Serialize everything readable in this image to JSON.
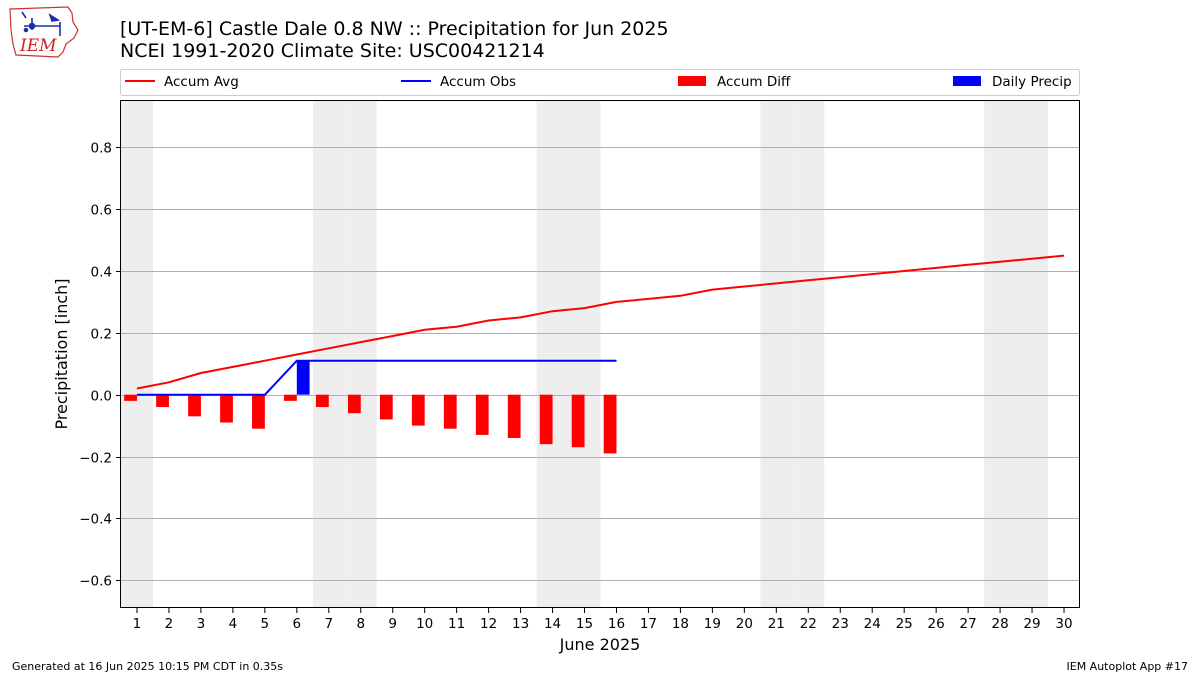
{
  "header": {
    "logo_text": "IEM",
    "title_line1": "[UT-EM-6] Castle Dale 0.8 NW :: Precipitation for Jun 2025",
    "title_line2": "NCEI 1991-2020 Climate Site: USC00421214"
  },
  "footer": {
    "left": "Generated at 16 Jun 2025 10:15 PM CDT in 0.35s",
    "right": "IEM Autoplot App #17"
  },
  "colors": {
    "accum_avg": "#ff0000",
    "accum_obs": "#0000ff",
    "accum_diff": "#ff0000",
    "daily_precip": "#0000ff",
    "weekend_shade": "#eeeeee",
    "grid": "#b0b0b0"
  },
  "chart_data": {
    "type": "line",
    "xlabel": "June 2025",
    "ylabel": "Precipitation [inch]",
    "xlim": [
      0.5,
      30.5
    ],
    "ylim": [
      -0.69,
      0.95
    ],
    "x_ticks": [
      1,
      2,
      3,
      4,
      5,
      6,
      7,
      8,
      9,
      10,
      11,
      12,
      13,
      14,
      15,
      16,
      17,
      18,
      19,
      20,
      21,
      22,
      23,
      24,
      25,
      26,
      27,
      28,
      29,
      30
    ],
    "y_ticks": [
      {
        "value": 0.8,
        "label": "0.8"
      },
      {
        "value": 0.6,
        "label": "0.6"
      },
      {
        "value": 0.4,
        "label": "0.4"
      },
      {
        "value": 0.2,
        "label": "0.2"
      },
      {
        "value": 0.0,
        "label": "0.0"
      },
      {
        "value": -0.2,
        "label": "−0.2"
      },
      {
        "value": -0.4,
        "label": "−0.4"
      },
      {
        "value": -0.6,
        "label": "−0.6"
      }
    ],
    "grid": "horizontal",
    "legend_position": "top",
    "weekend_days": [
      1,
      7,
      8,
      14,
      15,
      21,
      22,
      28,
      29
    ],
    "series": [
      {
        "name": "Accum Avg",
        "kind": "line",
        "x": [
          1,
          2,
          3,
          4,
          5,
          6,
          7,
          8,
          9,
          10,
          11,
          12,
          13,
          14,
          15,
          16,
          17,
          18,
          19,
          20,
          21,
          22,
          23,
          24,
          25,
          26,
          27,
          28,
          29,
          30
        ],
        "values": [
          0.02,
          0.04,
          0.07,
          0.09,
          0.11,
          0.13,
          0.15,
          0.17,
          0.19,
          0.21,
          0.22,
          0.24,
          0.25,
          0.27,
          0.28,
          0.3,
          0.31,
          0.32,
          0.34,
          0.35,
          0.36,
          0.37,
          0.38,
          0.39,
          0.4,
          0.41,
          0.42,
          0.43,
          0.44,
          0.45
        ]
      },
      {
        "name": "Accum Obs",
        "kind": "line",
        "x": [
          1,
          2,
          3,
          4,
          5,
          6,
          7,
          8,
          9,
          10,
          11,
          12,
          13,
          14,
          15,
          16
        ],
        "values": [
          0,
          0,
          0,
          0,
          0,
          0.11,
          0.11,
          0.11,
          0.11,
          0.11,
          0.11,
          0.11,
          0.11,
          0.11,
          0.11,
          0.11
        ]
      },
      {
        "name": "Accum Diff",
        "kind": "bar",
        "x": [
          1,
          2,
          3,
          4,
          5,
          6,
          7,
          8,
          9,
          10,
          11,
          12,
          13,
          14,
          15,
          16
        ],
        "values": [
          -0.02,
          -0.04,
          -0.07,
          -0.09,
          -0.11,
          -0.02,
          -0.04,
          -0.06,
          -0.08,
          -0.1,
          -0.11,
          -0.13,
          -0.14,
          -0.16,
          -0.17,
          -0.19
        ]
      },
      {
        "name": "Daily Precip",
        "kind": "bar",
        "x": [
          6
        ],
        "values": [
          0.11
        ]
      }
    ]
  }
}
